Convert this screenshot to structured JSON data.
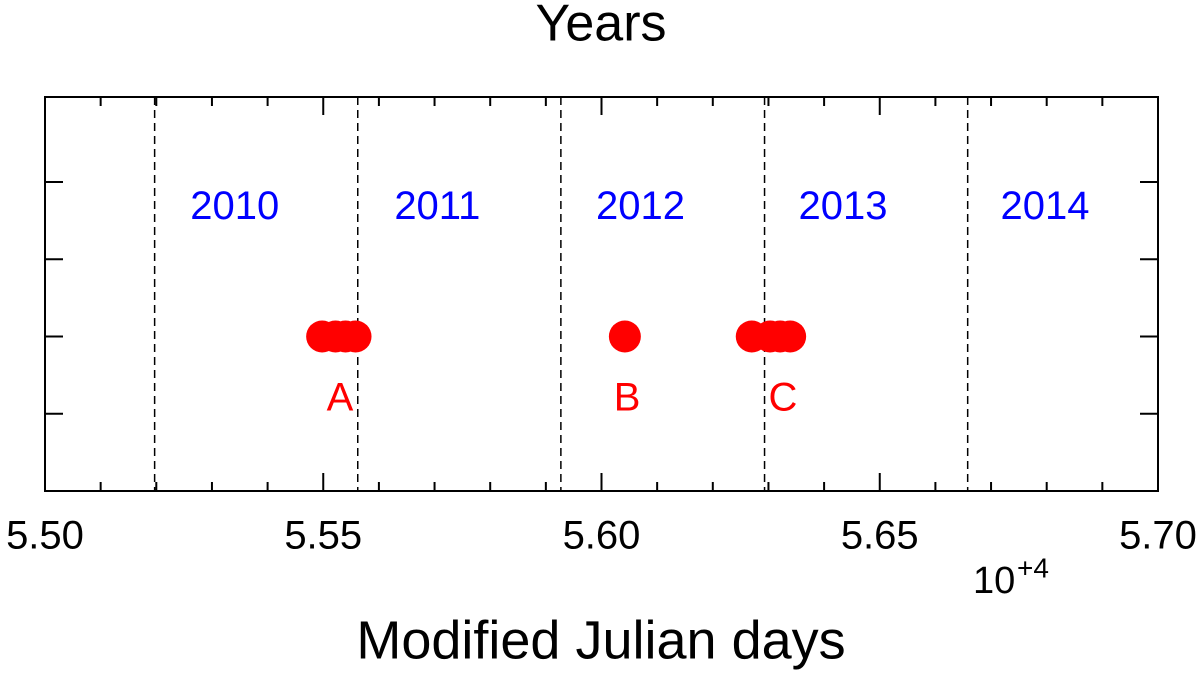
{
  "chart_data": {
    "type": "scatter",
    "title": "Years",
    "x_label": "Modified Julian days",
    "x_multiplier": {
      "base": "10",
      "exponent": "+4"
    },
    "xlim": [
      5.5,
      5.7
    ],
    "xticks": [
      {
        "value": 5.5,
        "label": "5.50"
      },
      {
        "value": 5.55,
        "label": "5.55"
      },
      {
        "value": 5.6,
        "label": "5.60"
      },
      {
        "value": 5.65,
        "label": "5.65"
      },
      {
        "value": 5.7,
        "label": "5.70"
      }
    ],
    "xminorticks": [
      5.51,
      5.52,
      5.53,
      5.54,
      5.56,
      5.57,
      5.58,
      5.59,
      5.61,
      5.62,
      5.63,
      5.64,
      5.66,
      5.67,
      5.68,
      5.69
    ],
    "ylim": [
      0,
      5.1
    ],
    "yticks": [
      1,
      2,
      3,
      4
    ],
    "vlines": [
      5.5197,
      5.5562,
      5.5927,
      5.6293,
      5.6658
    ],
    "series": [
      {
        "color": "#ff0000",
        "x": [
          5.5498,
          5.5522,
          5.554,
          5.5558,
          5.6042,
          5.627,
          5.6303,
          5.6321,
          5.6339
        ],
        "values": [
          2,
          2,
          2,
          2,
          2,
          2,
          2,
          2,
          2
        ]
      }
    ],
    "annotations": [
      {
        "text": "2010",
        "x": 5.5341,
        "y": 3.66,
        "color": "#0000ff"
      },
      {
        "text": "2011",
        "x": 5.5705,
        "y": 3.66,
        "color": "#0000ff"
      },
      {
        "text": "2012",
        "x": 5.607,
        "y": 3.66,
        "color": "#0000ff"
      },
      {
        "text": "2013",
        "x": 5.6434,
        "y": 3.66,
        "color": "#0000ff"
      },
      {
        "text": "2014",
        "x": 5.6797,
        "y": 3.66,
        "color": "#0000ff"
      },
      {
        "text": "A",
        "x": 5.553,
        "y": 1.18,
        "color": "#ff0000"
      },
      {
        "text": "B",
        "x": 5.6046,
        "y": 1.18,
        "color": "#ff0000"
      },
      {
        "text": "C",
        "x": 5.6326,
        "y": 1.18,
        "color": "#ff0000"
      }
    ]
  }
}
